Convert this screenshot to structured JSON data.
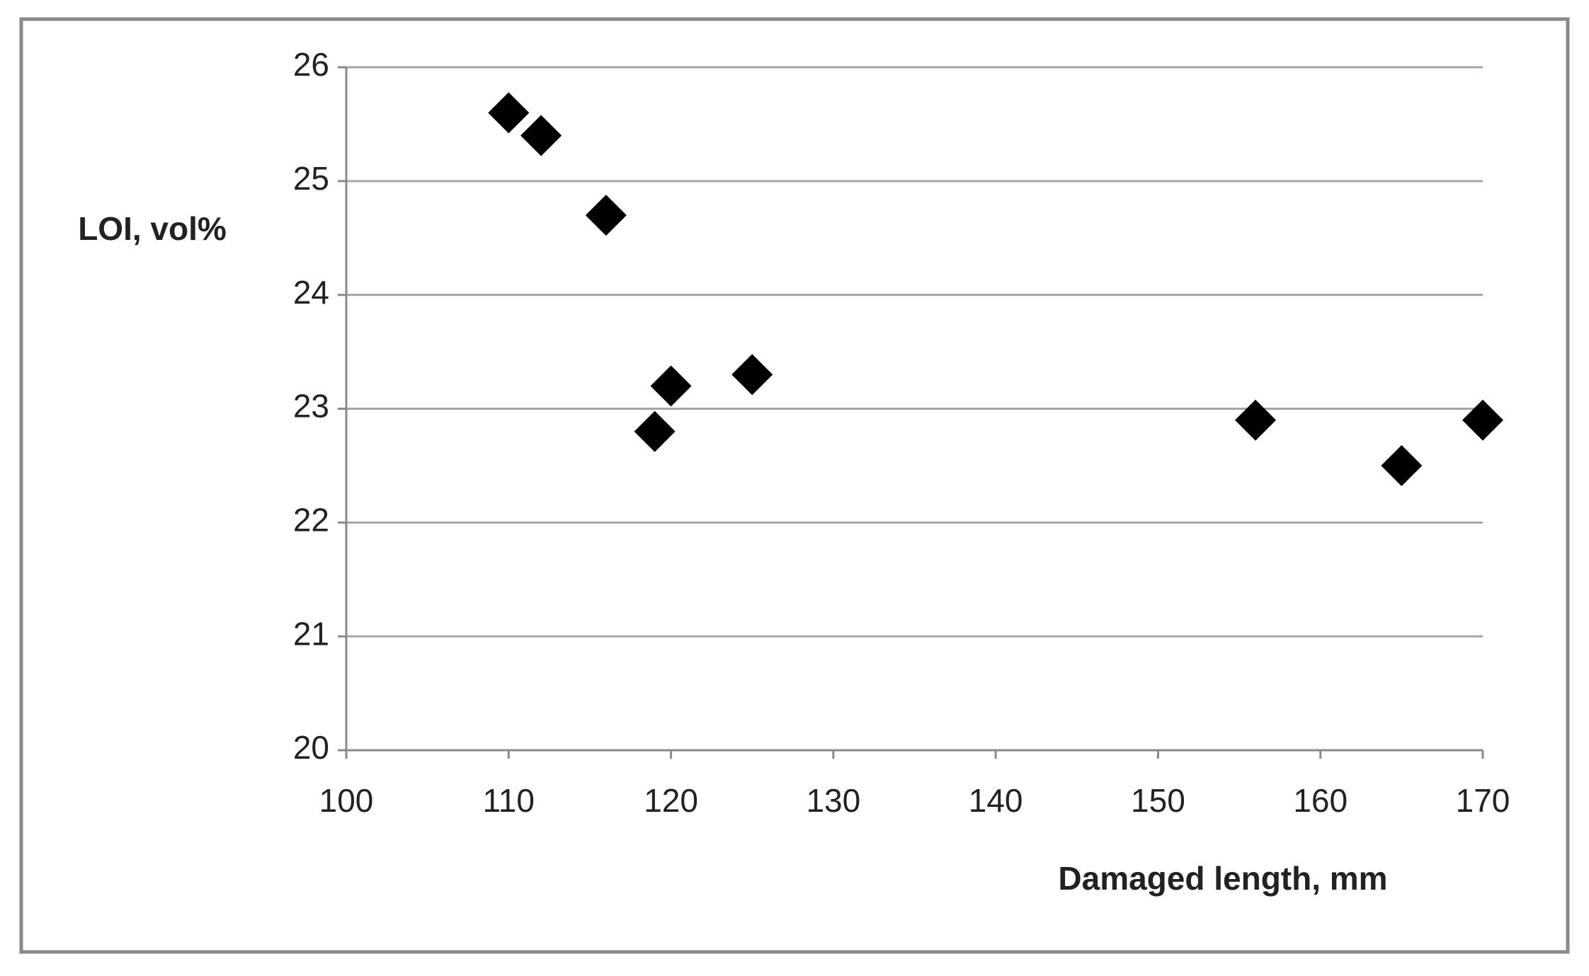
{
  "chart_data": {
    "type": "scatter",
    "x_label": "Damaged length, mm",
    "y_label": "LOI, vol%",
    "x": [
      110,
      112,
      116,
      119,
      120,
      125,
      156,
      165,
      170
    ],
    "values": [
      25.6,
      25.4,
      24.7,
      22.8,
      23.2,
      23.3,
      22.9,
      22.5,
      22.9
    ],
    "color": "#000000",
    "xlim": [
      100,
      170
    ],
    "xticks": [
      100,
      110,
      120,
      130,
      140,
      150,
      160,
      170
    ],
    "ylim": [
      20,
      26
    ],
    "yticks": [
      20,
      21,
      22,
      23,
      24,
      25,
      26
    ],
    "grid": true
  }
}
